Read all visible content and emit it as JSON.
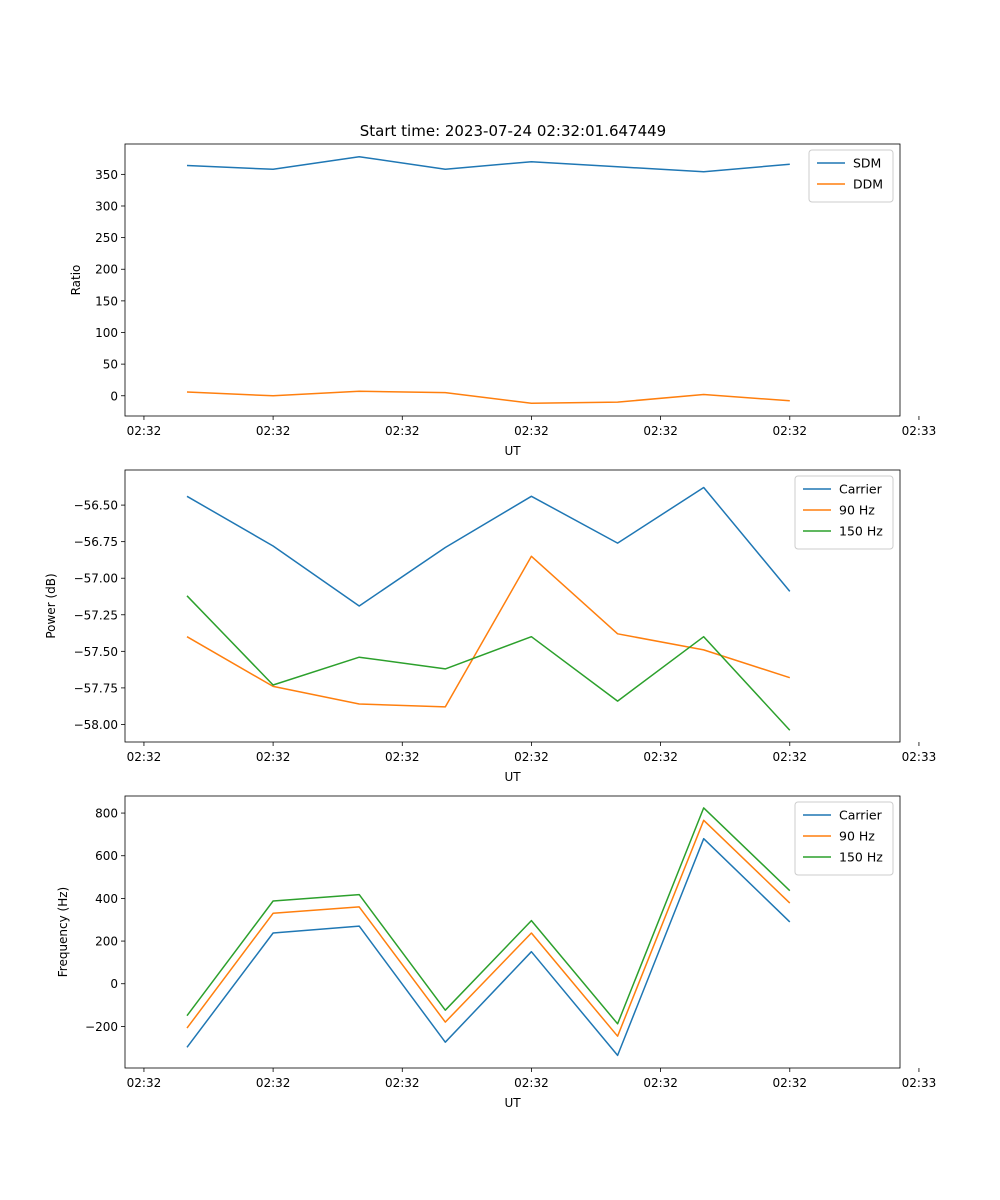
{
  "figure_title": "Start time: 2023-07-24 02:32:01.647449",
  "chart_data": [
    {
      "type": "line",
      "title": "Start time: 2023-07-24 02:32:01.647449",
      "xlabel": "UT",
      "ylabel": "Ratio",
      "x": [
        1,
        2,
        3,
        4,
        5,
        6,
        7,
        8
      ],
      "xlim": [
        0.28,
        9.28
      ],
      "x_ticks": [
        0.5,
        2.0,
        3.5,
        5.0,
        6.5,
        8.0,
        9.5
      ],
      "x_tick_labels": [
        "02:32",
        "02:32",
        "02:32",
        "02:32",
        "02:32",
        "02:32",
        "02:33"
      ],
      "ylim": [
        -32,
        398
      ],
      "y_ticks": [
        0,
        50,
        100,
        150,
        200,
        250,
        300,
        350
      ],
      "y_tick_labels": [
        "0",
        "50",
        "100",
        "150",
        "200",
        "250",
        "300",
        "350"
      ],
      "legend_position": "top-right",
      "series": [
        {
          "name": "SDM",
          "color": "#1f77b4",
          "values": [
            364,
            358,
            378,
            358,
            370,
            362,
            354,
            366
          ]
        },
        {
          "name": "DDM",
          "color": "#ff7f0e",
          "values": [
            6,
            0,
            7,
            5,
            -12,
            -10,
            2,
            -8
          ]
        }
      ]
    },
    {
      "type": "line",
      "xlabel": "UT",
      "ylabel": "Power (dB)",
      "x": [
        1,
        2,
        3,
        4,
        5,
        6,
        7,
        8
      ],
      "xlim": [
        0.28,
        9.28
      ],
      "x_ticks": [
        0.5,
        2.0,
        3.5,
        5.0,
        6.5,
        8.0,
        9.5
      ],
      "x_tick_labels": [
        "02:32",
        "02:32",
        "02:32",
        "02:32",
        "02:32",
        "02:32",
        "02:33"
      ],
      "ylim": [
        -58.12,
        -56.26
      ],
      "y_ticks": [
        -58.0,
        -57.75,
        -57.5,
        -57.25,
        -57.0,
        -56.75,
        -56.5
      ],
      "y_tick_labels": [
        "−58.00",
        "−57.75",
        "−57.50",
        "−57.25",
        "−57.00",
        "−56.75",
        "−56.50"
      ],
      "legend_position": "top-right",
      "series": [
        {
          "name": "Carrier",
          "color": "#1f77b4",
          "values": [
            -56.44,
            -56.78,
            -57.19,
            -56.79,
            -56.44,
            -56.76,
            -56.38,
            -57.09
          ]
        },
        {
          "name": "90 Hz",
          "color": "#ff7f0e",
          "values": [
            -57.4,
            -57.74,
            -57.86,
            -57.88,
            -56.85,
            -57.38,
            -57.49,
            -57.68
          ]
        },
        {
          "name": "150 Hz",
          "color": "#2ca02c",
          "values": [
            -57.12,
            -57.73,
            -57.54,
            -57.62,
            -57.4,
            -57.84,
            -57.4,
            -58.04
          ]
        }
      ]
    },
    {
      "type": "line",
      "xlabel": "UT",
      "ylabel": "Frequency (Hz)",
      "x": [
        1,
        2,
        3,
        4,
        5,
        6,
        7,
        8
      ],
      "xlim": [
        0.28,
        9.28
      ],
      "x_ticks": [
        0.5,
        2.0,
        3.5,
        5.0,
        6.5,
        8.0,
        9.5
      ],
      "x_tick_labels": [
        "02:32",
        "02:32",
        "02:32",
        "02:32",
        "02:32",
        "02:32",
        "02:33"
      ],
      "ylim": [
        -395,
        880
      ],
      "y_ticks": [
        -200,
        0,
        200,
        400,
        600,
        800
      ],
      "y_tick_labels": [
        "−200",
        "0",
        "200",
        "400",
        "600",
        "800"
      ],
      "legend_position": "top-right",
      "series": [
        {
          "name": "Carrier",
          "color": "#1f77b4",
          "values": [
            -298,
            238,
            270,
            -274,
            150,
            -336,
            680,
            290
          ]
        },
        {
          "name": "90 Hz",
          "color": "#ff7f0e",
          "values": [
            -208,
            330,
            360,
            -180,
            238,
            -246,
            766,
            378
          ]
        },
        {
          "name": "150 Hz",
          "color": "#2ca02c",
          "values": [
            -150,
            388,
            418,
            -124,
            296,
            -188,
            824,
            436
          ]
        }
      ]
    }
  ]
}
